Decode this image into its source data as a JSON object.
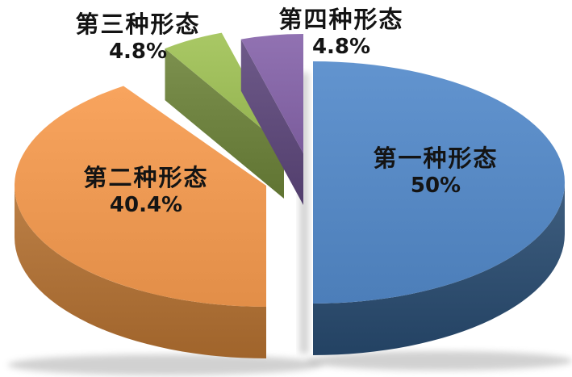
{
  "chart_data": {
    "type": "pie",
    "style": "3d-exploded",
    "title": "",
    "legend_position": "none",
    "background": "#FFFFFF",
    "text_color": "#141414",
    "start_angle_deg": 0,
    "direction": "clockwise",
    "slices": [
      {
        "label": "第一种形态",
        "value": 50,
        "pct_text": "50%",
        "color_top": "#5688C3",
        "color_side": "#2F4E6F",
        "label_position": "inside"
      },
      {
        "label": "第二种形态",
        "value": 40.4,
        "pct_text": "40.4%",
        "color_top": "#EC9852",
        "color_side": "#AC7037",
        "label_position": "inside"
      },
      {
        "label": "第三种形态",
        "value": 4.8,
        "pct_text": "4.8%",
        "color_top": "#9DBC59",
        "color_side": "#6C803E",
        "label_position": "outside"
      },
      {
        "label": "第四种形态",
        "value": 4.8,
        "pct_text": "4.8%",
        "color_top": "#8566A6",
        "color_side": "#5E4A79",
        "label_position": "outside"
      }
    ]
  }
}
